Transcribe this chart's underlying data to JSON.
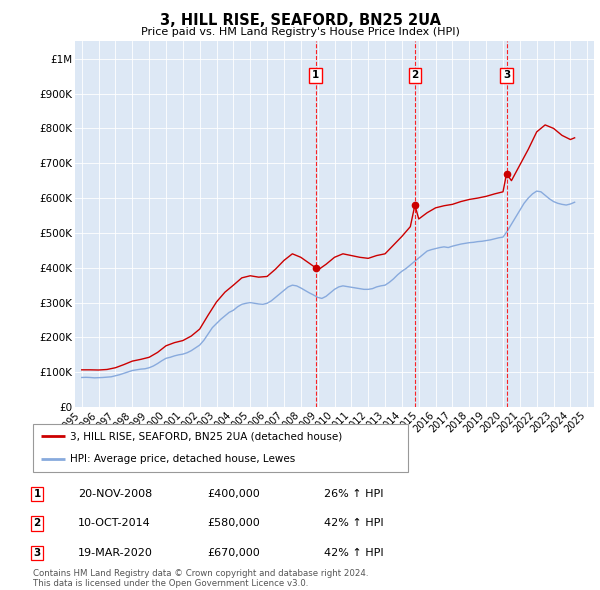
{
  "title": "3, HILL RISE, SEAFORD, BN25 2UA",
  "subtitle": "Price paid vs. HM Land Registry's House Price Index (HPI)",
  "ylabel_ticks": [
    "£0",
    "£100K",
    "£200K",
    "£300K",
    "£400K",
    "£500K",
    "£600K",
    "£700K",
    "£800K",
    "£900K",
    "£1M"
  ],
  "ytick_values": [
    0,
    100000,
    200000,
    300000,
    400000,
    500000,
    600000,
    700000,
    800000,
    900000,
    1000000
  ],
  "ylim": [
    0,
    1050000
  ],
  "background_color": "#dde8f5",
  "red_line_color": "#cc0000",
  "blue_line_color": "#88aadd",
  "sale_dates": [
    "20-NOV-2008",
    "10-OCT-2014",
    "19-MAR-2020"
  ],
  "sale_years": [
    2008.88,
    2014.77,
    2020.21
  ],
  "sale_prices": [
    400000,
    580000,
    670000
  ],
  "sale_labels": [
    "1",
    "2",
    "3"
  ],
  "legend_line1": "3, HILL RISE, SEAFORD, BN25 2UA (detached house)",
  "legend_line2": "HPI: Average price, detached house, Lewes",
  "copyright": "Contains HM Land Registry data © Crown copyright and database right 2024.\nThis data is licensed under the Open Government Licence v3.0.",
  "hpi_years": [
    1995.0,
    1995.25,
    1995.5,
    1995.75,
    1996.0,
    1996.25,
    1996.5,
    1996.75,
    1997.0,
    1997.25,
    1997.5,
    1997.75,
    1998.0,
    1998.25,
    1998.5,
    1998.75,
    1999.0,
    1999.25,
    1999.5,
    1999.75,
    2000.0,
    2000.25,
    2000.5,
    2000.75,
    2001.0,
    2001.25,
    2001.5,
    2001.75,
    2002.0,
    2002.25,
    2002.5,
    2002.75,
    2003.0,
    2003.25,
    2003.5,
    2003.75,
    2004.0,
    2004.25,
    2004.5,
    2004.75,
    2005.0,
    2005.25,
    2005.5,
    2005.75,
    2006.0,
    2006.25,
    2006.5,
    2006.75,
    2007.0,
    2007.25,
    2007.5,
    2007.75,
    2008.0,
    2008.25,
    2008.5,
    2008.75,
    2009.0,
    2009.25,
    2009.5,
    2009.75,
    2010.0,
    2010.25,
    2010.5,
    2010.75,
    2011.0,
    2011.25,
    2011.5,
    2011.75,
    2012.0,
    2012.25,
    2012.5,
    2012.75,
    2013.0,
    2013.25,
    2013.5,
    2013.75,
    2014.0,
    2014.25,
    2014.5,
    2014.75,
    2015.0,
    2015.25,
    2015.5,
    2015.75,
    2016.0,
    2016.25,
    2016.5,
    2016.75,
    2017.0,
    2017.25,
    2017.5,
    2017.75,
    2018.0,
    2018.25,
    2018.5,
    2018.75,
    2019.0,
    2019.25,
    2019.5,
    2019.75,
    2020.0,
    2020.25,
    2020.5,
    2020.75,
    2021.0,
    2021.25,
    2021.5,
    2021.75,
    2022.0,
    2022.25,
    2022.5,
    2022.75,
    2023.0,
    2023.25,
    2023.5,
    2023.75,
    2024.0,
    2024.25
  ],
  "hpi_values": [
    85000,
    85500,
    85000,
    84000,
    84500,
    85000,
    86000,
    87000,
    90000,
    93000,
    97000,
    101000,
    105000,
    107000,
    109000,
    110000,
    113000,
    118000,
    125000,
    133000,
    140000,
    143000,
    147000,
    150000,
    152000,
    156000,
    162000,
    170000,
    178000,
    192000,
    210000,
    228000,
    240000,
    252000,
    262000,
    272000,
    278000,
    288000,
    295000,
    298000,
    300000,
    298000,
    296000,
    295000,
    298000,
    305000,
    315000,
    325000,
    335000,
    345000,
    350000,
    348000,
    342000,
    335000,
    328000,
    322000,
    315000,
    312000,
    318000,
    328000,
    338000,
    345000,
    348000,
    346000,
    344000,
    342000,
    340000,
    338000,
    338000,
    340000,
    345000,
    348000,
    350000,
    358000,
    368000,
    380000,
    390000,
    398000,
    408000,
    418000,
    428000,
    438000,
    448000,
    452000,
    455000,
    458000,
    460000,
    458000,
    462000,
    465000,
    468000,
    470000,
    472000,
    473000,
    475000,
    476000,
    478000,
    480000,
    483000,
    486000,
    488000,
    505000,
    525000,
    545000,
    565000,
    585000,
    600000,
    612000,
    620000,
    618000,
    608000,
    598000,
    590000,
    585000,
    582000,
    580000,
    583000,
    588000
  ],
  "prop_years": [
    1995.0,
    1995.5,
    1996.0,
    1996.5,
    1997.0,
    1997.5,
    1998.0,
    1998.5,
    1999.0,
    1999.5,
    2000.0,
    2000.5,
    2001.0,
    2001.5,
    2002.0,
    2002.5,
    2003.0,
    2003.5,
    2004.0,
    2004.5,
    2005.0,
    2005.5,
    2006.0,
    2006.5,
    2007.0,
    2007.5,
    2008.0,
    2008.5,
    2008.88,
    2009.0,
    2009.5,
    2010.0,
    2010.5,
    2011.0,
    2011.5,
    2012.0,
    2012.5,
    2013.0,
    2013.5,
    2014.0,
    2014.5,
    2014.77,
    2015.0,
    2015.5,
    2016.0,
    2016.5,
    2017.0,
    2017.5,
    2018.0,
    2018.5,
    2019.0,
    2019.5,
    2020.0,
    2020.21,
    2020.5,
    2021.0,
    2021.5,
    2022.0,
    2022.5,
    2023.0,
    2023.5,
    2024.0,
    2024.25
  ],
  "prop_values": [
    107000,
    107000,
    106500,
    108000,
    113000,
    122000,
    132000,
    137000,
    143000,
    157000,
    176000,
    185000,
    191000,
    204000,
    224000,
    264000,
    302000,
    330000,
    350000,
    371000,
    377000,
    373000,
    375000,
    396000,
    421000,
    440000,
    430000,
    413000,
    400000,
    393000,
    410000,
    430000,
    440000,
    435000,
    430000,
    427000,
    435000,
    440000,
    465000,
    490000,
    518000,
    580000,
    540000,
    558000,
    572000,
    578000,
    582000,
    590000,
    596000,
    600000,
    605000,
    612000,
    618000,
    670000,
    650000,
    695000,
    740000,
    790000,
    810000,
    800000,
    780000,
    768000,
    773000
  ]
}
